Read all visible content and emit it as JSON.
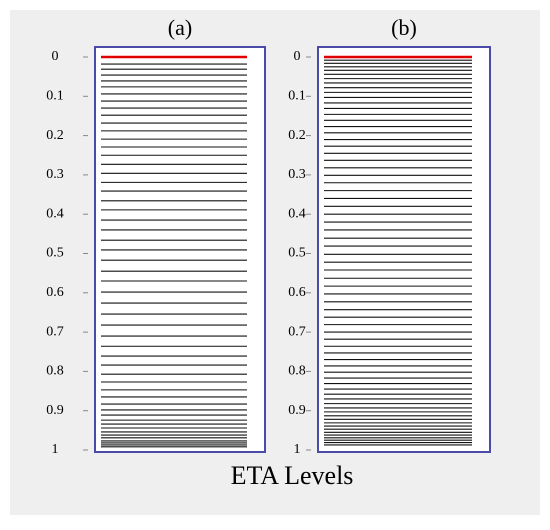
{
  "xlabel": "ETA Levels",
  "chart_data": [
    {
      "type": "levels",
      "title": "(a)",
      "color": "#111111",
      "top_color": "#e00000",
      "frame_color": "#4a4aa8",
      "ylim": [
        0,
        1
      ],
      "yticks": [
        0,
        0.1,
        0.2,
        0.3,
        0.4,
        0.5,
        0.6,
        0.7,
        0.8,
        0.9,
        1
      ],
      "values": [
        0,
        0.018,
        0.031,
        0.046,
        0.061,
        0.076,
        0.094,
        0.112,
        0.13,
        0.148,
        0.168,
        0.188,
        0.209,
        0.229,
        0.25,
        0.273,
        0.296,
        0.319,
        0.341,
        0.366,
        0.389,
        0.415,
        0.44,
        0.466,
        0.491,
        0.517,
        0.545,
        0.57,
        0.598,
        0.626,
        0.654,
        0.682,
        0.71,
        0.736,
        0.761,
        0.784,
        0.807,
        0.827,
        0.847,
        0.865,
        0.883,
        0.898,
        0.911,
        0.924,
        0.934,
        0.944,
        0.954,
        0.962,
        0.969,
        0.977,
        0.982,
        0.987,
        0.992
      ]
    },
    {
      "type": "levels",
      "title": "(b)",
      "color": "#111111",
      "top_color": "#e00000",
      "frame_color": "#4a4aa8",
      "ylim": [
        0,
        1
      ],
      "yticks": [
        0,
        0.1,
        0.2,
        0.3,
        0.4,
        0.5,
        0.6,
        0.7,
        0.8,
        0.9,
        1
      ],
      "values": [
        0,
        0.008,
        0.016,
        0.025,
        0.034,
        0.044,
        0.055,
        0.066,
        0.078,
        0.09,
        0.103,
        0.117,
        0.131,
        0.146,
        0.161,
        0.177,
        0.193,
        0.21,
        0.227,
        0.245,
        0.263,
        0.282,
        0.301,
        0.32,
        0.34,
        0.36,
        0.38,
        0.4,
        0.42,
        0.44,
        0.461,
        0.481,
        0.502,
        0.522,
        0.542,
        0.563,
        0.583,
        0.603,
        0.623,
        0.643,
        0.662,
        0.681,
        0.7,
        0.718,
        0.736,
        0.753,
        0.77,
        0.786,
        0.802,
        0.817,
        0.831,
        0.845,
        0.858,
        0.87,
        0.882,
        0.893,
        0.903,
        0.913,
        0.922,
        0.931,
        0.939,
        0.947,
        0.955,
        0.962,
        0.969,
        0.975,
        0.981,
        0.987
      ]
    }
  ]
}
